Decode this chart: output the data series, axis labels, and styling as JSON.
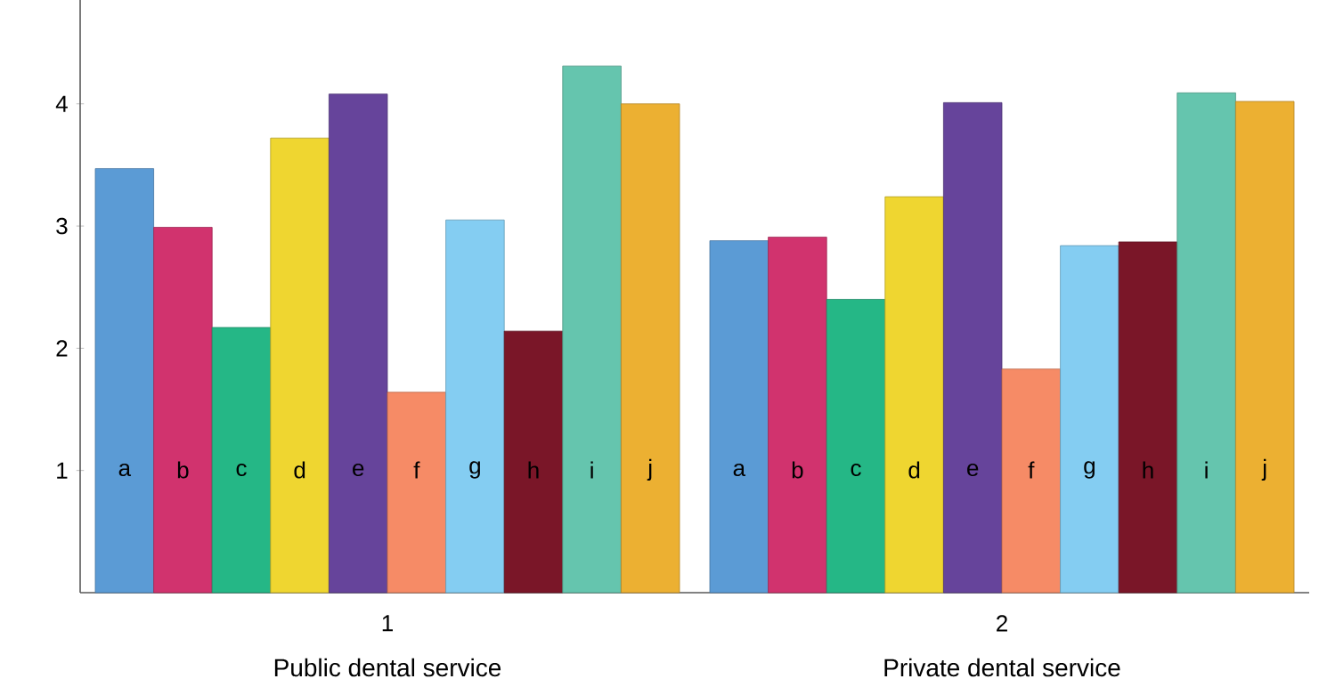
{
  "chart_data": {
    "type": "bar",
    "categories": [
      "1",
      "2"
    ],
    "series": [
      {
        "name": "a",
        "color": "#5b9bd5",
        "values": [
          3.47,
          2.88
        ]
      },
      {
        "name": "b",
        "color": "#d1336e",
        "values": [
          2.99,
          2.91
        ]
      },
      {
        "name": "c",
        "color": "#25b786",
        "values": [
          2.17,
          2.4
        ]
      },
      {
        "name": "d",
        "color": "#efd630",
        "values": [
          3.72,
          3.24
        ]
      },
      {
        "name": "e",
        "color": "#66449b",
        "values": [
          4.08,
          4.01
        ]
      },
      {
        "name": "f",
        "color": "#f68b66",
        "values": [
          1.64,
          1.83
        ]
      },
      {
        "name": "g",
        "color": "#84cdf2",
        "values": [
          3.05,
          2.84
        ]
      },
      {
        "name": "h",
        "color": "#7a1628",
        "values": [
          2.14,
          2.87
        ]
      },
      {
        "name": "i",
        "color": "#65c5ae",
        "values": [
          4.31,
          4.09
        ]
      },
      {
        "name": "j",
        "color": "#ecb032",
        "values": [
          4.0,
          4.02
        ]
      }
    ],
    "ylim": [
      0,
      4.85
    ],
    "yticks": [
      1,
      2,
      3,
      4
    ],
    "annotations": [
      "Public dental service",
      "Private dental service"
    ],
    "grid": false
  }
}
